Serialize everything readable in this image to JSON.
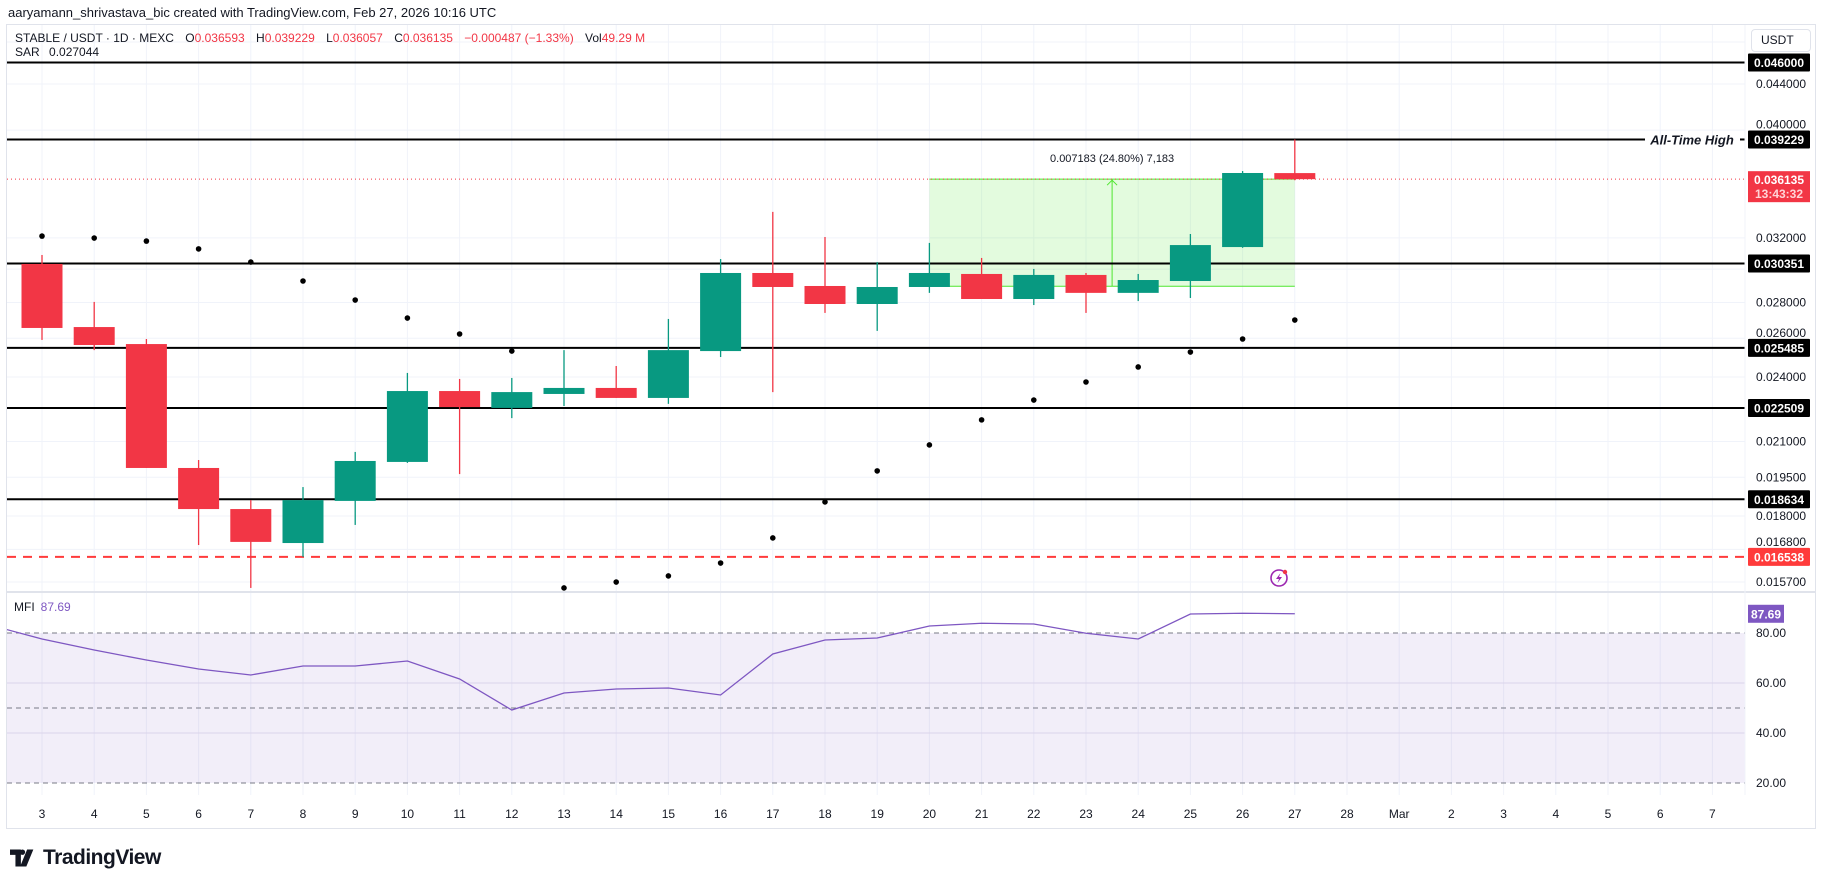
{
  "header": {
    "attribution": "aaryamann_shrivastava_bic created with TradingView.com, Feb 27, 2026 10:16 UTC"
  },
  "legend": {
    "symbol": "STABLE / USDT · 1D · MEXC",
    "o_label": "O",
    "o": "0.036593",
    "h_label": "H",
    "h": "0.039229",
    "l_label": "L",
    "l": "0.036057",
    "c_label": "C",
    "c": "0.036135",
    "change": "−0.000487 (−1.33%)",
    "vol_label": "Vol",
    "vol": "49.29 M"
  },
  "sar": {
    "label": "SAR",
    "value": "0.027044"
  },
  "currency_button": "USDT",
  "mfi_legend": {
    "label": "MFI",
    "value": "87.69"
  },
  "logo": {
    "text": "TradingView",
    "icon": "tradingview-logo-icon"
  },
  "alert_icon": "lightning-alert-icon",
  "colors": {
    "up": "#089981",
    "down": "#f23645",
    "mfi": "#7e57c2",
    "level": "#000000",
    "measure": "#4fe62f"
  },
  "chart_data": {
    "type": "candlestick",
    "title": "STABLE / USDT · 1D · MEXC",
    "scale": "log",
    "x_labels": [
      "3",
      "4",
      "5",
      "6",
      "7",
      "8",
      "9",
      "10",
      "11",
      "12",
      "13",
      "14",
      "15",
      "16",
      "17",
      "18",
      "19",
      "20",
      "21",
      "22",
      "23",
      "24",
      "25",
      "26",
      "27",
      "28",
      "Mar",
      "2",
      "3",
      "4",
      "5",
      "6",
      "7"
    ],
    "candles": [
      {
        "day": "3",
        "o": 0.03032,
        "h": 0.03089,
        "l": 0.02591,
        "c": 0.02656
      },
      {
        "day": "4",
        "o": 0.02661,
        "h": 0.02803,
        "l": 0.02537,
        "c": 0.02564
      },
      {
        "day": "5",
        "o": 0.02569,
        "h": 0.02596,
        "l": 0.01988,
        "c": 0.01988
      },
      {
        "day": "6",
        "o": 0.01988,
        "h": 0.02021,
        "l": 0.01695,
        "c": 0.01826
      },
      {
        "day": "7",
        "o": 0.01826,
        "h": 0.0186,
        "l": 0.01551,
        "c": 0.01706
      },
      {
        "day": "8",
        "o": 0.01702,
        "h": 0.01911,
        "l": 0.01654,
        "c": 0.0186
      },
      {
        "day": "9",
        "o": 0.01857,
        "h": 0.02055,
        "l": 0.01767,
        "c": 0.02017
      },
      {
        "day": "10",
        "o": 0.02013,
        "h": 0.0242,
        "l": 0.02009,
        "c": 0.02331
      },
      {
        "day": "11",
        "o": 0.02331,
        "h": 0.0239,
        "l": 0.01963,
        "c": 0.02255
      },
      {
        "day": "12",
        "o": 0.02251,
        "h": 0.02395,
        "l": 0.02204,
        "c": 0.02326
      },
      {
        "day": "13",
        "o": 0.02317,
        "h": 0.02537,
        "l": 0.0226,
        "c": 0.02346
      },
      {
        "day": "14",
        "o": 0.02346,
        "h": 0.02455,
        "l": 0.02298,
        "c": 0.02298
      },
      {
        "day": "15",
        "o": 0.02298,
        "h": 0.02706,
        "l": 0.0227,
        "c": 0.02537
      },
      {
        "day": "16",
        "o": 0.02532,
        "h": 0.03063,
        "l": 0.02501,
        "c": 0.02976
      },
      {
        "day": "17",
        "o": 0.02976,
        "h": 0.03377,
        "l": 0.02326,
        "c": 0.02891
      },
      {
        "day": "18",
        "o": 0.02897,
        "h": 0.03206,
        "l": 0.0274,
        "c": 0.02791
      },
      {
        "day": "19",
        "o": 0.02791,
        "h": 0.03044,
        "l": 0.0264,
        "c": 0.02891
      },
      {
        "day": "20",
        "o": 0.02891,
        "h": 0.03167,
        "l": 0.02856,
        "c": 0.02976
      },
      {
        "day": "21",
        "o": 0.0297,
        "h": 0.0307,
        "l": 0.0282,
        "c": 0.0282
      },
      {
        "day": "22",
        "o": 0.0282,
        "h": 0.03001,
        "l": 0.02785,
        "c": 0.02964
      },
      {
        "day": "23",
        "o": 0.02964,
        "h": 0.02976,
        "l": 0.0274,
        "c": 0.02856
      },
      {
        "day": "24",
        "o": 0.02856,
        "h": 0.0297,
        "l": 0.02808,
        "c": 0.02933
      },
      {
        "day": "25",
        "o": 0.02927,
        "h": 0.03226,
        "l": 0.02826,
        "c": 0.03153
      },
      {
        "day": "26",
        "o": 0.0314,
        "h": 0.03675,
        "l": 0.03135,
        "c": 0.0366
      },
      {
        "day": "27",
        "o": 0.036593,
        "h": 0.039229,
        "l": 0.036057,
        "c": 0.036135
      }
    ],
    "sar_values": [
      0.03212,
      0.03199,
      0.03179,
      0.03128,
      0.03044,
      0.02927,
      0.02814,
      0.02711,
      0.02623,
      0.02532,
      0.01551,
      0.0157,
      0.0159,
      0.01633,
      0.0172,
      0.01853,
      0.01976,
      0.02085,
      0.02196,
      0.02288,
      0.02375,
      0.0245,
      0.02527,
      0.02596,
      0.027
    ],
    "y_ticks": [
      "0.044000",
      "0.040000",
      "0.032000",
      "0.028000",
      "0.026000",
      "0.024000",
      "0.021000",
      "0.019500",
      "0.018000",
      "0.016800",
      "0.015700"
    ],
    "y_tick_values": [
      0.044,
      0.04,
      0.032,
      0.028,
      0.026,
      0.024,
      0.021,
      0.0195,
      0.018,
      0.0168,
      0.0157
    ],
    "y_gridlines": [
      0.048,
      0.044,
      0.04,
      0.032,
      0.03,
      0.028,
      0.026,
      0.024,
      0.021,
      0.0195,
      0.018,
      0.0168,
      0.0157
    ],
    "price_levels": [
      {
        "value": 0.046,
        "label": "0.046000",
        "style": "solid"
      },
      {
        "value": 0.039229,
        "label": "0.039229",
        "style": "solid",
        "annotation": "All-Time High"
      },
      {
        "value": 0.030351,
        "label": "0.030351",
        "style": "solid"
      },
      {
        "value": 0.025485,
        "label": "0.025485",
        "style": "solid"
      },
      {
        "value": 0.022509,
        "label": "0.022509",
        "style": "solid"
      },
      {
        "value": 0.018634,
        "label": "0.018634",
        "style": "solid"
      },
      {
        "value": 0.016538,
        "label": "0.016538",
        "style": "dashed-red"
      }
    ],
    "last_price": {
      "value": 0.036135,
      "label": "0.036135",
      "countdown": "13:43:32"
    },
    "measure": {
      "text": "0.007183 (24.80%) 7,183",
      "from_day_index": 17,
      "to_day_index": 24,
      "low": 0.028952,
      "high": 0.036135
    },
    "mfi": {
      "label": "MFI",
      "start_index": -1,
      "values": [
        83.2,
        77.6,
        73.2,
        69.2,
        65.6,
        63.2,
        66.8,
        66.8,
        68.8,
        61.6,
        49.2,
        56.0,
        57.6,
        58.0,
        55.2,
        71.6,
        77.2,
        78.0,
        82.8,
        83.9,
        83.6,
        79.9,
        77.6,
        87.6,
        87.9,
        87.69
      ],
      "last_label": "87.69",
      "bands": [
        80,
        50,
        20
      ],
      "ticks": [
        "80.00",
        "60.00",
        "40.00",
        "20.00"
      ],
      "tick_values": [
        80,
        60,
        40,
        20
      ]
    }
  }
}
